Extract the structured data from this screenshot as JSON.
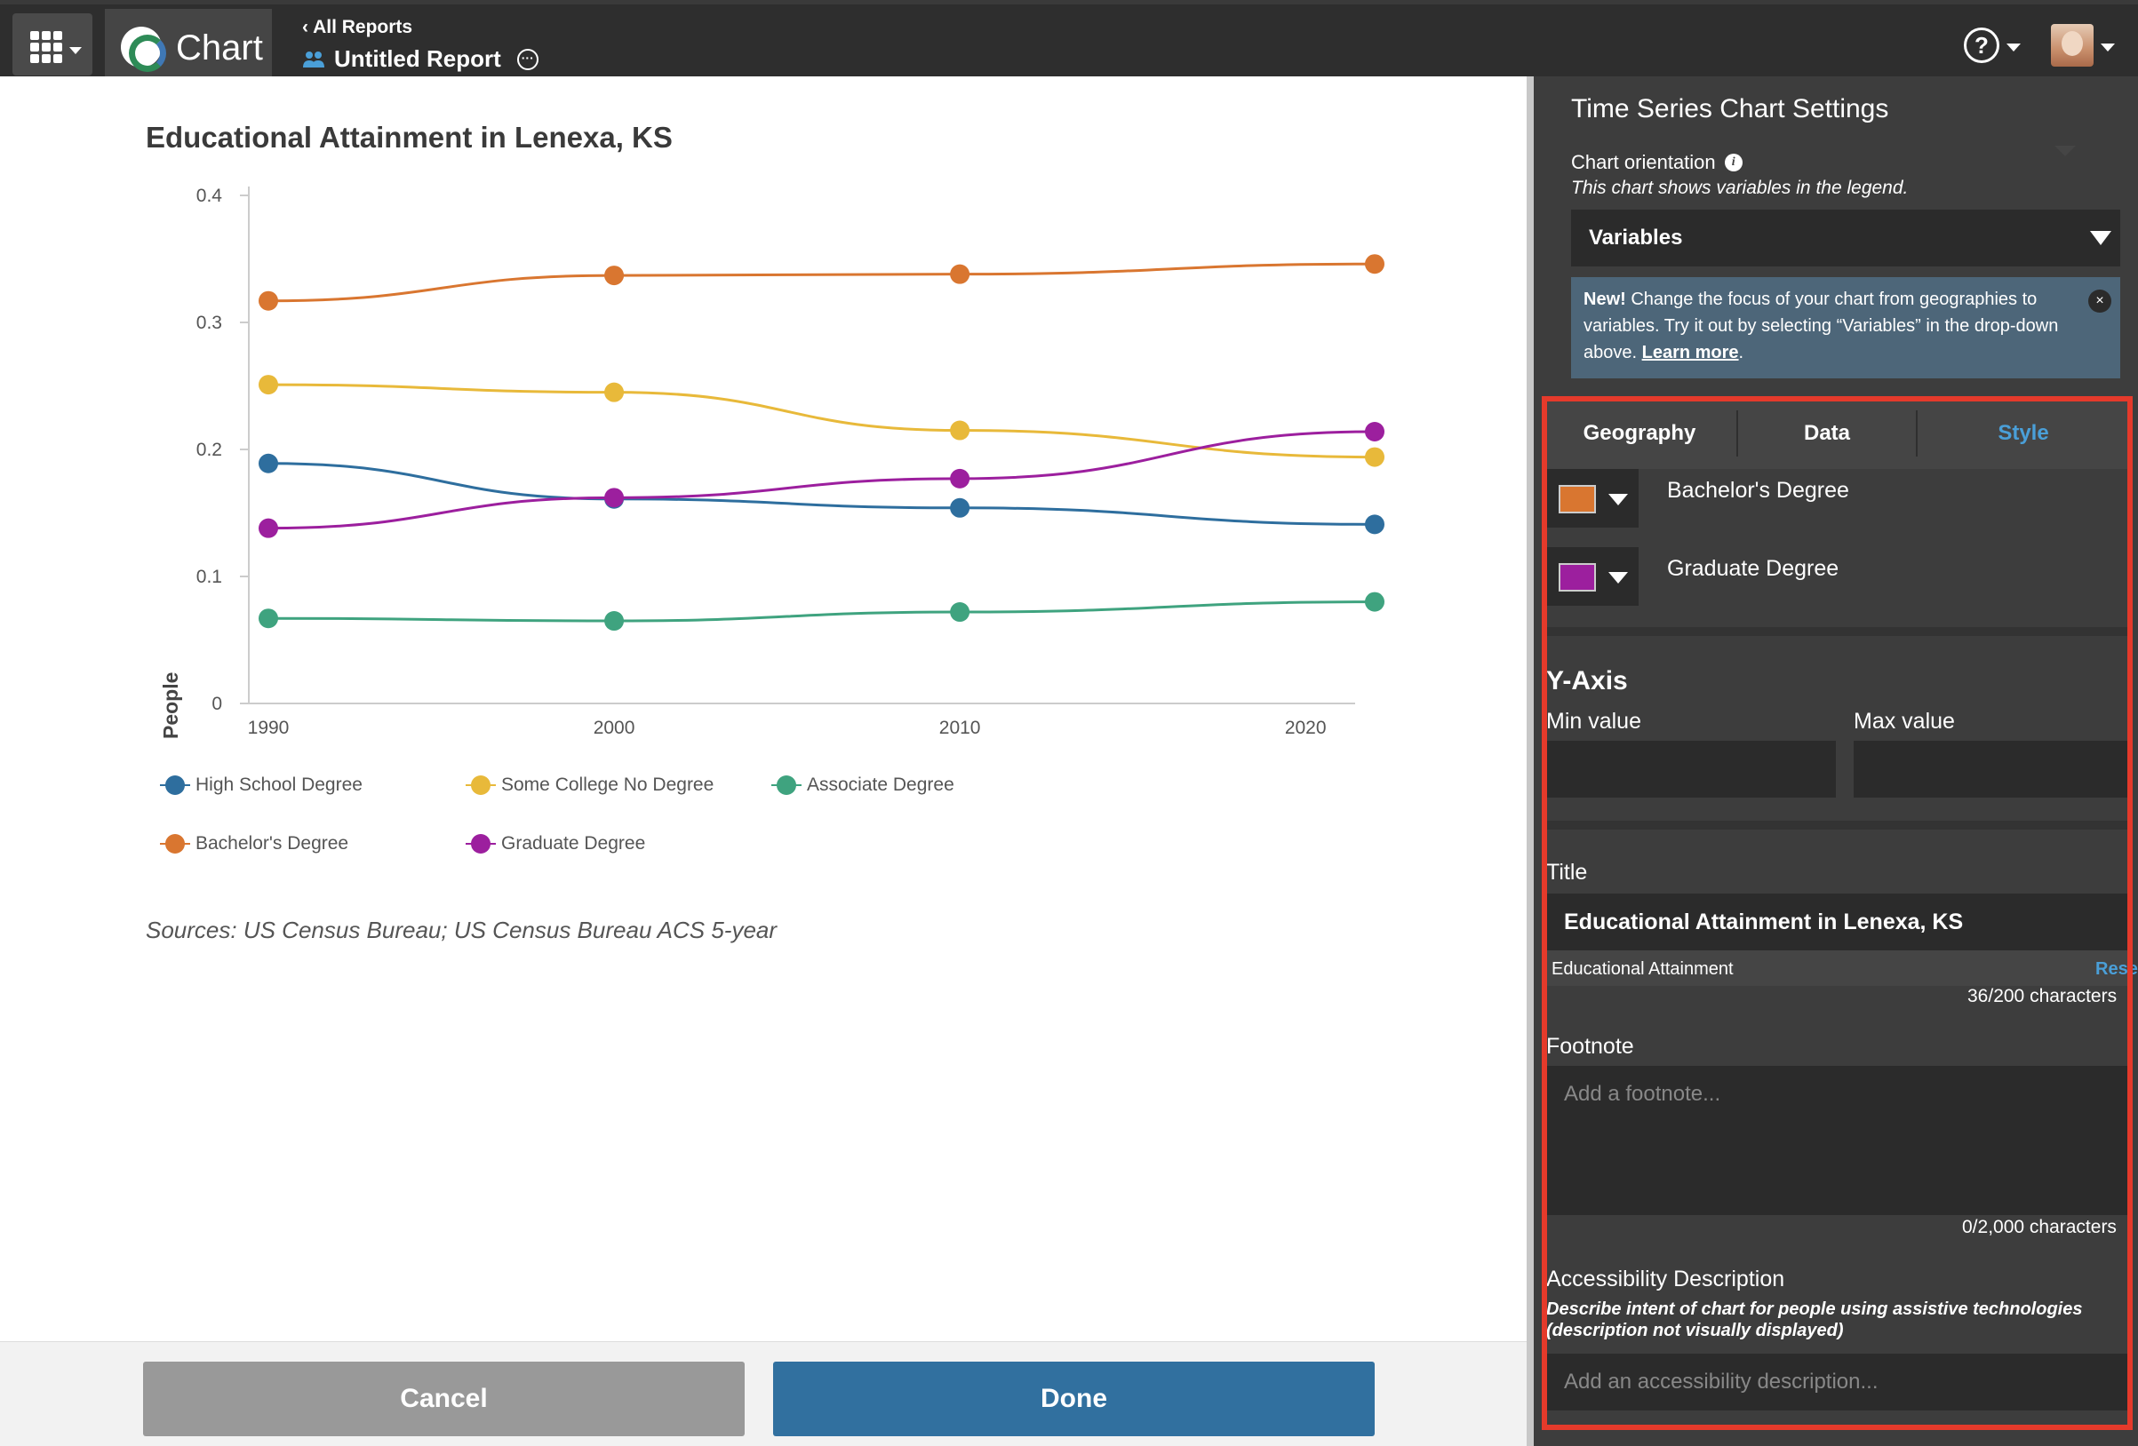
{
  "topbar": {
    "app_name": "Chart",
    "back_link": "All Reports",
    "report_title": "Untitled Report",
    "icons": [
      "apps-grid-icon",
      "chevron-down-icon",
      "chart-logo-icon",
      "chevron-left-icon",
      "people-icon",
      "more-options-icon",
      "help-icon",
      "avatar"
    ]
  },
  "chart": {
    "title": "Educational Attainment in Lenexa, KS",
    "ylabel": "People",
    "yticks": [
      "0",
      "0.1",
      "0.2",
      "0.3",
      "0.4"
    ],
    "xticks": [
      "1990",
      "2000",
      "2010",
      "2020"
    ],
    "legend": [
      {
        "label": "High School Degree",
        "color": "#2e6e9e"
      },
      {
        "label": "Some College No Degree",
        "color": "#e8b93a"
      },
      {
        "label": "Associate Degree",
        "color": "#3fa37f"
      },
      {
        "label": "Bachelor's Degree",
        "color": "#d97630"
      },
      {
        "label": "Graduate Degree",
        "color": "#9c1f9e"
      }
    ],
    "sources": "Sources: US Census Bureau; US Census Bureau ACS 5-year"
  },
  "chart_data": {
    "type": "line",
    "title": "Educational Attainment in Lenexa, KS",
    "xlabel": "",
    "ylabel": "People",
    "x": [
      1990,
      2000,
      2010,
      2022
    ],
    "xlim": [
      1990,
      2022
    ],
    "ylim": [
      0,
      0.4
    ],
    "grid": false,
    "legend_position": "bottom",
    "series": [
      {
        "name": "High School Degree",
        "color": "#2e6e9e",
        "values": [
          0.189,
          0.161,
          0.154,
          0.141
        ]
      },
      {
        "name": "Some College No Degree",
        "color": "#e8b93a",
        "values": [
          0.251,
          0.245,
          0.215,
          0.194
        ]
      },
      {
        "name": "Associate Degree",
        "color": "#3fa37f",
        "values": [
          0.067,
          0.065,
          0.072,
          0.08
        ]
      },
      {
        "name": "Bachelor's Degree",
        "color": "#d97630",
        "values": [
          0.317,
          0.337,
          0.338,
          0.346
        ]
      },
      {
        "name": "Graduate Degree",
        "color": "#9c1f9e",
        "values": [
          0.138,
          0.162,
          0.177,
          0.214
        ]
      }
    ]
  },
  "footer": {
    "cancel_label": "Cancel",
    "done_label": "Done"
  },
  "panel": {
    "title": "Time Series Chart Settings",
    "orientation_label": "Chart orientation",
    "orientation_help": "This chart shows variables in the legend.",
    "orientation_value": "Variables",
    "notice": {
      "bold": "New!",
      "text1": " Change the focus of your chart from geographies to variables. Try it out by selecting “Variables” in the drop-down above. ",
      "link": "Learn more",
      "text2": "."
    },
    "tabs": [
      "Geography",
      "Data",
      "Style"
    ],
    "active_tab": "Style",
    "series_styles": [
      {
        "label": "Bachelor's Degree",
        "color": "#d97630"
      },
      {
        "label": "Graduate Degree",
        "color": "#9c1f9e"
      }
    ],
    "yaxis_heading": "Y-Axis",
    "min_label": "Min value",
    "max_label": "Max value",
    "min_value": "",
    "max_value": "",
    "title_label": "Title",
    "title_value": "Educational Attainment in Lenexa, KS",
    "title_default": "Educational Attainment",
    "reset_label": "Reset",
    "title_count": "36/200 characters",
    "footnote_label": "Footnote",
    "footnote_placeholder": "Add a footnote...",
    "footnote_count": "0/2,000 characters",
    "a11y_label": "Accessibility Description",
    "a11y_help_line1": "Describe intent of chart for people using assistive technologies",
    "a11y_help_line2": "(description not visually displayed)",
    "a11y_placeholder": "Add an accessibility description..."
  },
  "highlight_color": "#e53a2b"
}
